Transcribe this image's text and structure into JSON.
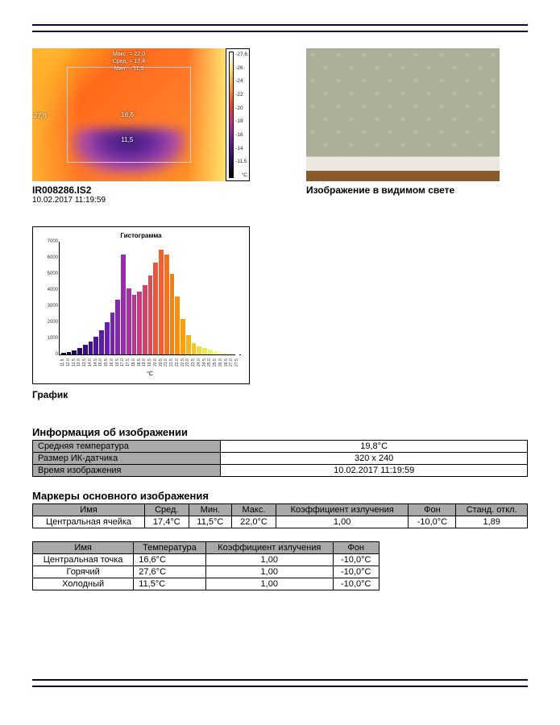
{
  "thermal": {
    "filename": "IR008286.IS2",
    "timestamp": "10.02.2017 11:19:59",
    "stats": {
      "max": "Макс. = 22,0",
      "avg": "Сред. = 17,4",
      "min": "Мин. = 11,5"
    },
    "markers_on_image": {
      "left": "27,6",
      "center": "16,6",
      "bottom": "11,5"
    },
    "colorbar": {
      "ticks": [
        "27.6",
        "26",
        "24",
        "22",
        "20",
        "18",
        "16",
        "14",
        "11.5"
      ],
      "unit": "°C"
    }
  },
  "visible": {
    "caption": "Изображение в видимом свете",
    "wallpaper_color": "#a9b097",
    "baseboard_color": "#ece8df",
    "floor_color": "#8a5a2a"
  },
  "histogram": {
    "title": "Гистограмма",
    "caption": "График",
    "xaxis_unit": "°C",
    "yticks": [
      0,
      1000,
      2000,
      3000,
      4000,
      5000,
      6000,
      7000
    ],
    "ymax": 7000,
    "bars": [
      {
        "x": "11.5",
        "v": 80,
        "c": "#100030"
      },
      {
        "x": "12.0",
        "v": 140,
        "c": "#180446"
      },
      {
        "x": "12.5",
        "v": 260,
        "c": "#22075a"
      },
      {
        "x": "13.0",
        "v": 420,
        "c": "#2c0a6e"
      },
      {
        "x": "13.5",
        "v": 600,
        "c": "#360e80"
      },
      {
        "x": "14.0",
        "v": 820,
        "c": "#401290"
      },
      {
        "x": "14.5",
        "v": 1100,
        "c": "#4c179c"
      },
      {
        "x": "15.0",
        "v": 1500,
        "c": "#5a1ba4"
      },
      {
        "x": "15.5",
        "v": 2000,
        "c": "#6820aa"
      },
      {
        "x": "16.0",
        "v": 2600,
        "c": "#7725ae"
      },
      {
        "x": "16.5",
        "v": 3400,
        "c": "#8729af"
      },
      {
        "x": "17.0",
        "v": 6200,
        "c": "#972daa"
      },
      {
        "x": "17.5",
        "v": 4100,
        "c": "#a632a0"
      },
      {
        "x": "18.0",
        "v": 3700,
        "c": "#b53792"
      },
      {
        "x": "18.5",
        "v": 3900,
        "c": "#c33d80"
      },
      {
        "x": "19.0",
        "v": 4300,
        "c": "#d0446c"
      },
      {
        "x": "19.5",
        "v": 4900,
        "c": "#dc4c58"
      },
      {
        "x": "20.0",
        "v": 5700,
        "c": "#e75644"
      },
      {
        "x": "20.5",
        "v": 6500,
        "c": "#ef6230"
      },
      {
        "x": "21.0",
        "v": 6200,
        "c": "#f5701f"
      },
      {
        "x": "21.5",
        "v": 5000,
        "c": "#f98012"
      },
      {
        "x": "22.0",
        "v": 3600,
        "c": "#fc900a"
      },
      {
        "x": "22.5",
        "v": 2200,
        "c": "#fda108"
      },
      {
        "x": "23.0",
        "v": 1200,
        "c": "#fcb313"
      },
      {
        "x": "23.5",
        "v": 700,
        "c": "#f9c527"
      },
      {
        "x": "24.0",
        "v": 500,
        "c": "#f4d83e"
      },
      {
        "x": "24.5",
        "v": 400,
        "c": "#efe656"
      },
      {
        "x": "25.0",
        "v": 300,
        "c": "#edf06e"
      },
      {
        "x": "25.5",
        "v": 200,
        "c": "#f1f68a"
      },
      {
        "x": "26.0",
        "v": 130,
        "c": "#f6faa8"
      },
      {
        "x": "26.5",
        "v": 80,
        "c": "#fafcc8"
      },
      {
        "x": "27.0",
        "v": 40,
        "c": "#fdfee4"
      },
      {
        "x": "27.5",
        "v": 20,
        "c": "#ffffff"
      }
    ],
    "background_color": "#ffffff",
    "axis_color": "#000000",
    "tick_fontsize": 6
  },
  "info_table": {
    "title": "Информация об изображении",
    "rows": [
      {
        "label": "Средняя температура",
        "value": "19,8°C"
      },
      {
        "label": "Размер ИК-датчика",
        "value": "320 x 240"
      },
      {
        "label": "Время изображения",
        "value": "10.02.2017 11:19:59"
      }
    ]
  },
  "markers_table": {
    "title": "Маркеры основного изображения",
    "columns": [
      "Имя",
      "Сред.",
      "Мин.",
      "Макс.",
      "Коэффициент излучения",
      "Фон",
      "Станд. откл."
    ],
    "rows": [
      [
        "Центральная ячейка",
        "17,4°C",
        "11,5°C",
        "22,0°C",
        "1,00",
        "-10,0°C",
        "1,89"
      ]
    ]
  },
  "points_table": {
    "columns": [
      "Имя",
      "Температура",
      "Коэффициент излучения",
      "Фон"
    ],
    "rows": [
      [
        "Центральная точка",
        "16,6°C",
        "1,00",
        "-10,0°C"
      ],
      [
        "Горячий",
        "27,6°C",
        "1,00",
        "-10,0°C"
      ],
      [
        "Холодный",
        "11,5°C",
        "1,00",
        "-10,0°C"
      ]
    ],
    "col_align": [
      "center",
      "left",
      "center",
      "center"
    ]
  }
}
